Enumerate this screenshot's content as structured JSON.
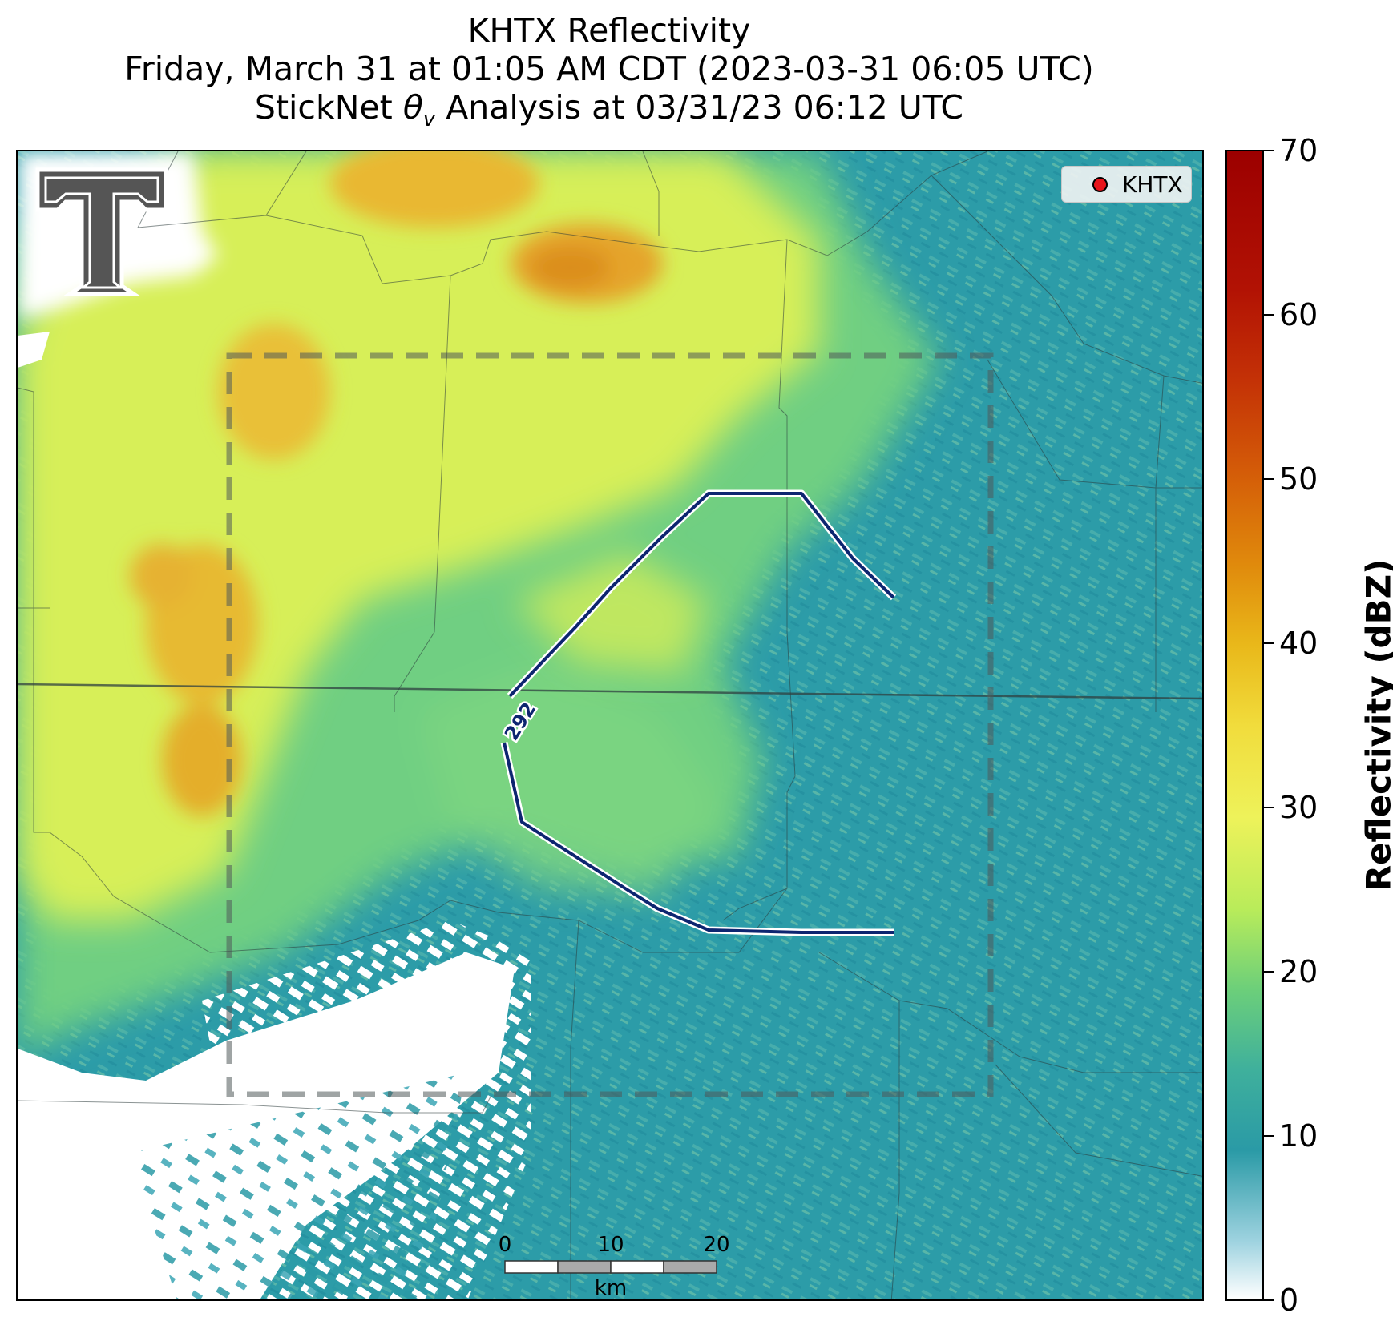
{
  "title": {
    "line1": "KHTX Reflectivity",
    "line2": "Friday, March 31 at 01:05 AM CDT (2023-03-31 06:05 UTC)",
    "line3_prefix": "StickNet ",
    "line3_symbol": "θ",
    "line3_subscript": "v",
    "line3_suffix": " Analysis at 03/31/23 06:12 UTC"
  },
  "legend": {
    "marker_label": "KHTX",
    "marker_color": "#e8141a"
  },
  "contour": {
    "label": "292",
    "color": "#0d2570"
  },
  "scale_bar": {
    "labels": [
      "0",
      "10",
      "20"
    ],
    "unit": "km"
  },
  "colorbar": {
    "title": "Reflectivity (dBZ)",
    "ticks": [
      "0",
      "10",
      "20",
      "30",
      "40",
      "50",
      "60",
      "70"
    ],
    "range": [
      0,
      70
    ],
    "colors": [
      "#ffffff",
      "#2a9aa6",
      "#6ccf7a",
      "#eef25a",
      "#e9b81a",
      "#e08a0c",
      "#c43206",
      "#9c0000"
    ]
  },
  "logo": {
    "name": "texas-tech-double-t-logo"
  }
}
